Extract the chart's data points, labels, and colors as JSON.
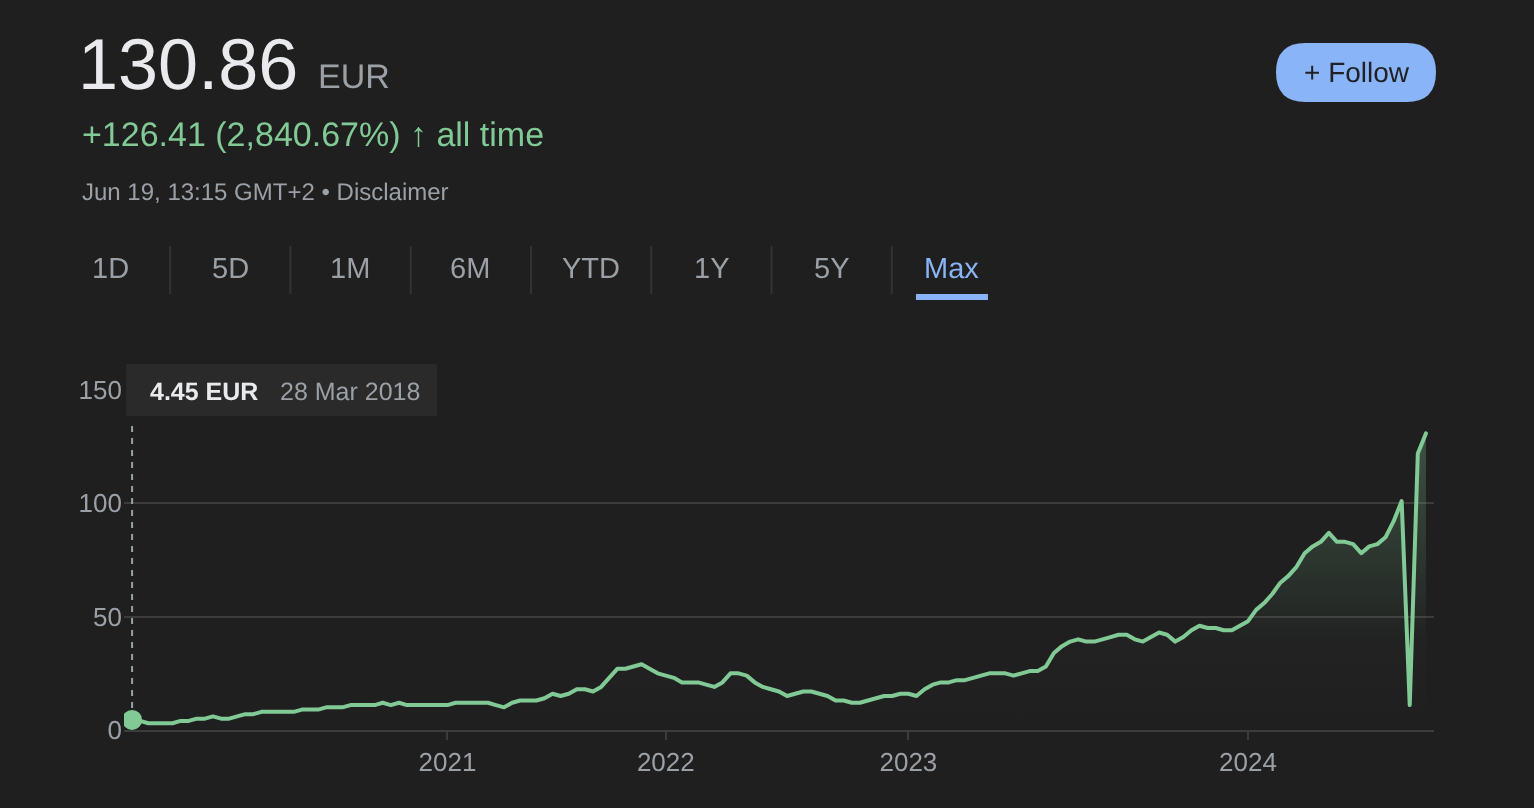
{
  "chart_data": {
    "type": "area",
    "title": "130.86",
    "subtitle": "+126.41 (2,840.67%) ↑ all time",
    "categories": [
      null,
      null,
      null,
      null,
      null,
      null,
      null,
      null,
      null,
      null,
      null,
      null,
      null,
      null,
      null,
      null,
      null,
      null,
      null,
      null,
      null,
      null,
      null,
      null,
      null,
      null,
      null,
      null,
      null,
      null,
      null,
      null,
      null,
      null,
      null,
      null,
      null,
      null,
      null,
      "2021",
      null,
      null,
      null,
      null,
      null,
      null,
      null,
      null,
      null,
      null,
      null,
      null,
      null,
      null,
      null,
      null,
      null,
      null,
      null,
      null,
      null,
      null,
      null,
      null,
      null,
      null,
      "2022",
      null,
      null,
      null,
      null,
      null,
      null,
      null,
      null,
      null,
      null,
      null,
      null,
      null,
      null,
      null,
      null,
      null,
      null,
      null,
      null,
      null,
      null,
      null,
      null,
      null,
      null,
      null,
      null,
      null,
      "2023",
      null,
      null,
      null,
      null,
      null,
      null,
      null,
      null,
      null,
      null,
      null,
      null,
      null,
      null,
      null,
      null,
      null,
      null,
      null,
      null,
      null,
      null,
      null,
      null,
      null,
      null,
      null,
      null,
      null,
      null,
      null,
      null,
      null,
      null,
      null,
      null,
      null,
      null,
      null,
      null,
      null,
      "2024",
      null,
      null,
      null,
      null,
      null,
      null,
      null,
      null,
      null,
      null,
      null,
      null,
      null,
      null,
      null,
      null,
      null,
      null,
      null,
      null,
      null,
      null
    ],
    "values": [
      4.45,
      4,
      3,
      3,
      3,
      3,
      4,
      4,
      5,
      5,
      6,
      5,
      5,
      6,
      7,
      7,
      8,
      8,
      8,
      8,
      8,
      9,
      9,
      9,
      10,
      10,
      10,
      11,
      11,
      11,
      11,
      12,
      11,
      12,
      11,
      11,
      11,
      11,
      11,
      11,
      12,
      12,
      12,
      12,
      12,
      11,
      10,
      12,
      13,
      13,
      13,
      14,
      16,
      15,
      16,
      18,
      18,
      17,
      19,
      23,
      27,
      27,
      28,
      29,
      27,
      25,
      24,
      23,
      21,
      21,
      21,
      20,
      19,
      21,
      25,
      25,
      24,
      21,
      19,
      18,
      17,
      15,
      16,
      17,
      17,
      16,
      15,
      13,
      13,
      12,
      12,
      13,
      14,
      15,
      15,
      16,
      16,
      15,
      18,
      20,
      21,
      21,
      22,
      22,
      23,
      24,
      25,
      25,
      25,
      24,
      25,
      26,
      26,
      28,
      34,
      37,
      39,
      40,
      39,
      39,
      40,
      41,
      42,
      42,
      40,
      39,
      41,
      43,
      42,
      39,
      41,
      44,
      46,
      45,
      45,
      44,
      44,
      46,
      48,
      53,
      56,
      60,
      65,
      68,
      72,
      78,
      81,
      83,
      87,
      83,
      83,
      82,
      78,
      81,
      82,
      85,
      92,
      101,
      11,
      122,
      130.86
    ],
    "color": "#81c995",
    "ylim": [
      0,
      150
    ],
    "yticks": [
      0,
      50,
      100,
      150
    ],
    "grid": "y",
    "annotations": [
      "EUR",
      "Jun 19, 13:15 GMT+2 • Disclaimer",
      "+ Follow",
      "4.45 EUR",
      "28 Mar 2018",
      "1D",
      "5D",
      "1M",
      "6M",
      "YTD",
      "1Y",
      "5Y",
      "Max"
    ]
  }
}
